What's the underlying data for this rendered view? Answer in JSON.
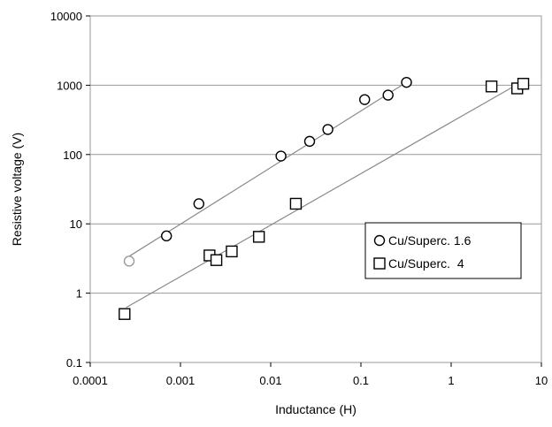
{
  "chart_data": {
    "type": "scatter",
    "xlabel": "Inductance (H)",
    "ylabel": "Resistive voltage (V)",
    "x_scale": "log",
    "y_scale": "log",
    "xlim": [
      0.0001,
      10
    ],
    "ylim": [
      0.1,
      10000
    ],
    "x_ticks": [
      "0.0001",
      "0.001",
      "0.01",
      "0.1",
      "1",
      "10"
    ],
    "y_ticks": [
      "0.1",
      "1",
      "10",
      "100",
      "1000",
      "10000"
    ],
    "grid": "horizontal",
    "legend_position": "bottom-right",
    "series": [
      {
        "name": "Cu/Superc. 1.6",
        "marker": "circle",
        "points": [
          {
            "x": 0.00027,
            "y": 2.9
          },
          {
            "x": 0.0007,
            "y": 6.7
          },
          {
            "x": 0.0016,
            "y": 19.5
          },
          {
            "x": 0.013,
            "y": 95
          },
          {
            "x": 0.027,
            "y": 155
          },
          {
            "x": 0.043,
            "y": 230
          },
          {
            "x": 0.11,
            "y": 620
          },
          {
            "x": 0.2,
            "y": 720
          },
          {
            "x": 0.32,
            "y": 1100
          }
        ],
        "trendline": [
          [
            0.00027,
            3.4
          ],
          [
            0.32,
            1100
          ]
        ]
      },
      {
        "name": "Cu/Superc.  4",
        "marker": "square",
        "points": [
          {
            "x": 0.00024,
            "y": 0.5
          },
          {
            "x": 0.0021,
            "y": 3.5
          },
          {
            "x": 0.0025,
            "y": 3.0
          },
          {
            "x": 0.0037,
            "y": 4.0
          },
          {
            "x": 0.0074,
            "y": 6.5
          },
          {
            "x": 0.019,
            "y": 19.5
          },
          {
            "x": 2.8,
            "y": 960
          },
          {
            "x": 5.4,
            "y": 900
          },
          {
            "x": 6.3,
            "y": 1050
          }
        ],
        "trendline": [
          [
            0.00025,
            0.62
          ],
          [
            6.3,
            1150
          ]
        ]
      }
    ]
  }
}
